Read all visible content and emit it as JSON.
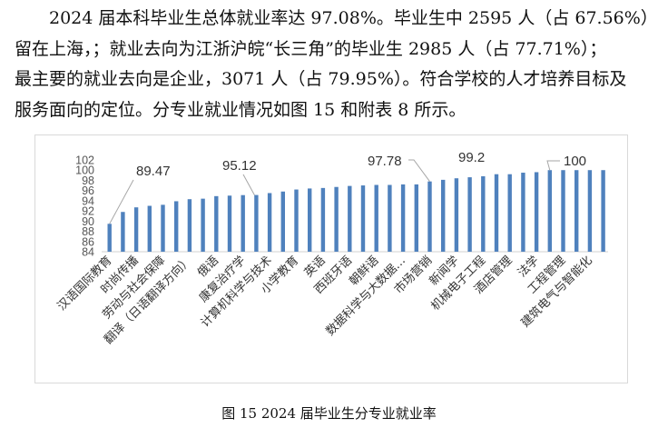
{
  "paragraph": {
    "lines": [
      "2024 届本科毕业生总体就业率达 97.08%。毕业生中 2595 人（占 67.56%）",
      "留在上海，；就业去向为江浙沪皖“长三角”的毕业生 2985 人（占 77.71%）；",
      "最主要的就业去向是企业，3071 人（占 79.95%）。符合学校的人才培养目标及",
      "服务面向的定位。分专业就业情况如图 15 和附表 8 所示。"
    ]
  },
  "chart_data": {
    "type": "bar",
    "title": "",
    "xlabel": "",
    "ylabel": "",
    "ylim": [
      84,
      102
    ],
    "yticks": [
      84,
      86,
      88,
      90,
      92,
      94,
      96,
      98,
      100,
      102
    ],
    "grid": false,
    "bar_color": "#4f81bd",
    "category_labels_shown": [
      "汉语国际教育",
      "时尚传播",
      "劳动与社会保障",
      "翻译（日语翻译方向）",
      "俄语",
      "康复治疗学",
      "计算机科学与技术",
      "小学教育",
      "英语",
      "西班牙语",
      "朝鲜语",
      "数据科学与大数据…",
      "市场营销",
      "新闻学",
      "机械电子工程",
      "酒店管理",
      "法学",
      "工程管理",
      "建筑电气与智能化"
    ],
    "values": [
      89.47,
      91.8,
      92.7,
      93.0,
      93.2,
      93.9,
      94.3,
      94.4,
      94.9,
      95.0,
      95.1,
      95.12,
      95.5,
      95.8,
      96.2,
      96.4,
      96.5,
      96.7,
      96.9,
      97.0,
      97.1,
      97.1,
      97.2,
      97.2,
      97.78,
      98.1,
      98.4,
      98.6,
      98.8,
      99.2,
      99.2,
      99.5,
      99.6,
      100,
      100,
      100,
      100,
      100
    ],
    "data_labels": [
      {
        "bar": 1,
        "text": "89.47"
      },
      {
        "bar": 12,
        "text": "95.12"
      },
      {
        "bar": 25,
        "text": "97.78"
      },
      {
        "bar": 30,
        "text": "99.2"
      },
      {
        "bar": 34,
        "text": "100"
      }
    ]
  },
  "caption": "图 15 2024 届毕业生分专业就业率"
}
